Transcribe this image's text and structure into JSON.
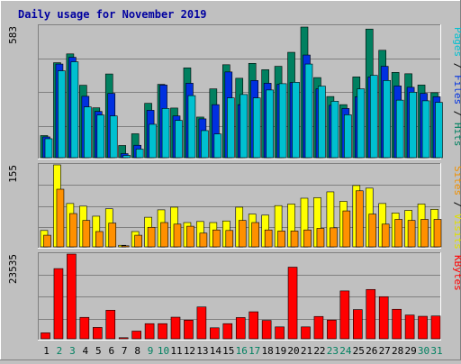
{
  "chart_data": [
    {
      "type": "bar",
      "title": "Daily usage for November 2019",
      "categories": [
        "1",
        "2",
        "3",
        "4",
        "5",
        "6",
        "7",
        "8",
        "9",
        "10",
        "11",
        "12",
        "13",
        "14",
        "15",
        "16",
        "17",
        "18",
        "19",
        "20",
        "21",
        "22",
        "23",
        "24",
        "25",
        "26",
        "27",
        "28",
        "29",
        "30",
        "31"
      ],
      "weekend_days": [
        "2",
        "3",
        "9",
        "10",
        "16",
        "17",
        "23",
        "24",
        "30",
        "31"
      ],
      "ymax_label": "583",
      "ylim": [
        0,
        583
      ],
      "ylabel_parts": [
        {
          "text": "Pages",
          "color": "#00c0d0"
        },
        {
          "text": " / ",
          "color": "#000000"
        },
        {
          "text": "Files",
          "color": "#0030e0"
        },
        {
          "text": " / ",
          "color": "#000000"
        },
        {
          "text": "Hits",
          "color": "#008060"
        }
      ],
      "grid": true,
      "series": [
        {
          "name": "Hits",
          "color": "#008060",
          "values": [
            98,
            421,
            460,
            321,
            221,
            371,
            54,
            106,
            241,
            325,
            220,
            398,
            180,
            305,
            412,
            352,
            418,
            390,
            405,
            467,
            579,
            355,
            271,
            235,
            358,
            570,
            476,
            378,
            372,
            322,
            288
          ]
        },
        {
          "name": "Files",
          "color": "#0030e0",
          "values": [
            92,
            415,
            445,
            272,
            205,
            285,
            18,
            55,
            210,
            322,
            185,
            330,
            172,
            235,
            380,
            235,
            342,
            330,
            325,
            333,
            455,
            305,
            232,
            218,
            270,
            358,
            405,
            318,
            312,
            285,
            270
          ]
        },
        {
          "name": "Pages",
          "color": "#00c0d0",
          "values": [
            84,
            385,
            425,
            225,
            189,
            185,
            10,
            38,
            148,
            218,
            165,
            275,
            120,
            105,
            265,
            280,
            265,
            300,
            328,
            334,
            415,
            317,
            250,
            190,
            305,
            365,
            342,
            255,
            290,
            252,
            245
          ]
        }
      ]
    },
    {
      "type": "bar",
      "ymax_label": "155",
      "ylim": [
        0,
        155
      ],
      "ylabel_parts": [
        {
          "text": "Sites",
          "color": "#f09000"
        },
        {
          "text": " / ",
          "color": "#000000"
        },
        {
          "text": "Visits",
          "color": "#e0e000"
        }
      ],
      "grid": true,
      "series": [
        {
          "name": "Visits",
          "color": "#ffff00",
          "values": [
            31,
            155,
            82,
            77,
            58,
            72,
            3,
            29,
            56,
            70,
            75,
            46,
            48,
            46,
            49,
            75,
            62,
            60,
            78,
            81,
            92,
            93,
            104,
            86,
            116,
            111,
            82,
            64,
            69,
            81,
            71
          ]
        },
        {
          "name": "Sites",
          "color": "#ff9000",
          "values": [
            22,
            109,
            63,
            50,
            29,
            45,
            2,
            22,
            37,
            46,
            43,
            39,
            26,
            32,
            31,
            50,
            46,
            32,
            30,
            30,
            32,
            35,
            36,
            68,
            106,
            62,
            43,
            52,
            50,
            52,
            52
          ]
        }
      ]
    },
    {
      "type": "bar",
      "ymax_label": "23535",
      "ylim": [
        0,
        23535
      ],
      "ylabel_parts": [
        {
          "text": "KBytes",
          "color": "#ff0000"
        }
      ],
      "grid": true,
      "series": [
        {
          "name": "KBytes",
          "color": "#ff0000",
          "values": [
            1650,
            19500,
            23535,
            5950,
            3150,
            7940,
            300,
            2130,
            4200,
            4200,
            6000,
            5180,
            8840,
            3050,
            4200,
            5900,
            7500,
            5100,
            3300,
            19900,
            3300,
            6200,
            5200,
            13300,
            8110,
            13700,
            11700,
            8200,
            6600,
            6250,
            6330
          ]
        }
      ]
    }
  ]
}
